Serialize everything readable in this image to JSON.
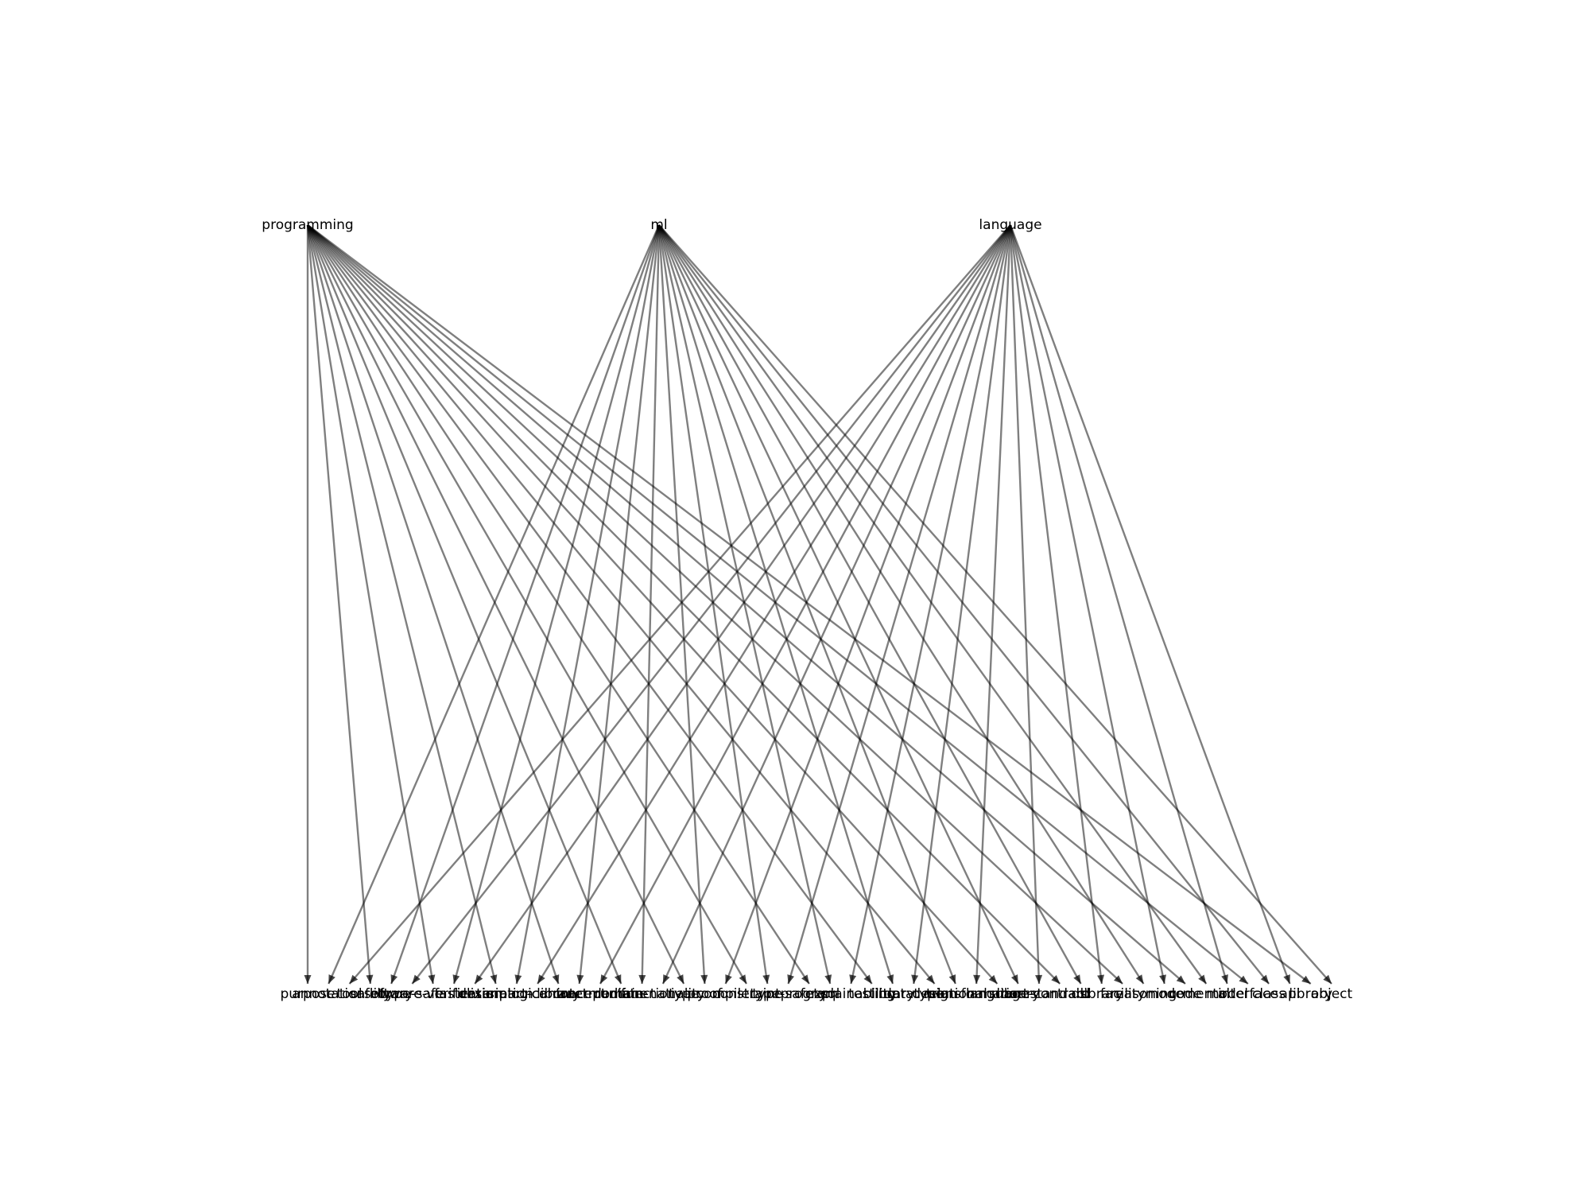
{
  "graph": {
    "sources": [
      "programming",
      "ml",
      "language"
    ],
    "targets": [
      "purpose",
      "annotation",
      "tool",
      "safety",
      "library",
      "type-safe",
      "software-verification",
      "faster",
      "elixir",
      "description",
      "analogical",
      "smart-contract",
      "library",
      "concept",
      "intermediate",
      "runtime",
      "domain-native",
      "functionality",
      "type",
      "proof",
      "compiler",
      "constraint",
      "type",
      "type-safety",
      "program",
      "sql",
      "explainability",
      "testing",
      "library",
      "datatype",
      "design",
      "relational",
      "transformation",
      "language",
      "library",
      "smart-contract",
      "standard",
      "dsl",
      "library",
      "facility",
      "reasoning",
      "mode",
      "code",
      "mental",
      "model",
      "interface",
      "class",
      "api",
      "library",
      "object"
    ],
    "edge_color": "#000000"
  }
}
